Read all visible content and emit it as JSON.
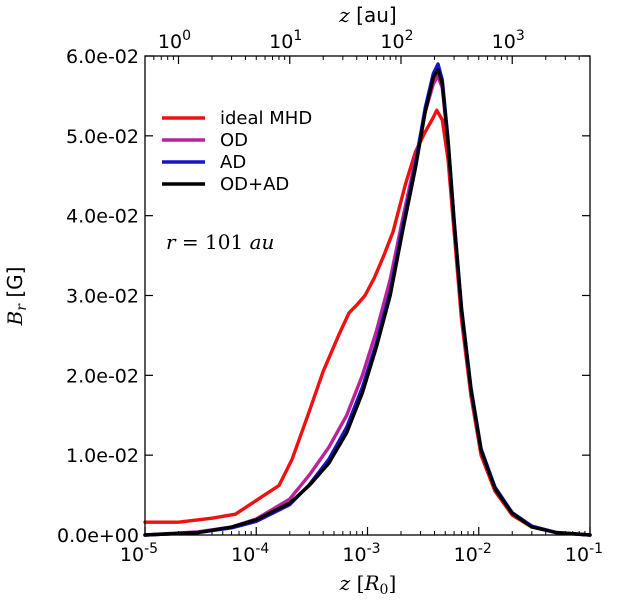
{
  "chart_data": {
    "type": "line",
    "xscale": "log",
    "xlim": [
      1e-05,
      0.1
    ],
    "ylim": [
      0,
      0.06
    ],
    "xlabel": "z [R0]",
    "ylabel": "Br [G]",
    "top_axis_label": "z [au]",
    "annotation": "r = 101 au",
    "legend_position": "upper-left",
    "grid": false,
    "y_ticks": [
      {
        "v": 0.0,
        "label": "0.0e+00"
      },
      {
        "v": 0.01,
        "label": "1.0e-02"
      },
      {
        "v": 0.02,
        "label": "2.0e-02"
      },
      {
        "v": 0.03,
        "label": "3.0e-02"
      },
      {
        "v": 0.04,
        "label": "4.0e-02"
      },
      {
        "v": 0.05,
        "label": "5.0e-02"
      },
      {
        "v": 0.06,
        "label": "6.0e-02"
      }
    ],
    "x_ticks": [
      {
        "v": 1e-05,
        "base": "10",
        "exp": "-5"
      },
      {
        "v": 0.0001,
        "base": "10",
        "exp": "-4"
      },
      {
        "v": 0.001,
        "base": "10",
        "exp": "-3"
      },
      {
        "v": 0.01,
        "base": "10",
        "exp": "-2"
      },
      {
        "v": 0.1,
        "base": "10",
        "exp": "-1"
      }
    ],
    "top_ticks": [
      {
        "v": 2e-05,
        "base": "10",
        "exp": "0"
      },
      {
        "v": 0.0002,
        "base": "10",
        "exp": "1"
      },
      {
        "v": 0.002,
        "base": "10",
        "exp": "2"
      },
      {
        "v": 0.02,
        "base": "10",
        "exp": "3"
      }
    ],
    "series": [
      {
        "name": "ideal MHD",
        "color": "#ee1111",
        "points": [
          [
            1e-05,
            0.0016
          ],
          [
            2e-05,
            0.0016
          ],
          [
            4e-05,
            0.0021
          ],
          [
            6.5e-05,
            0.0026
          ],
          [
            0.00016,
            0.0062
          ],
          [
            0.00021,
            0.0095
          ],
          [
            0.0003,
            0.0155
          ],
          [
            0.0004,
            0.0205
          ],
          [
            0.00055,
            0.025
          ],
          [
            0.00068,
            0.0278
          ],
          [
            0.0008,
            0.0288
          ],
          [
            0.00095,
            0.03
          ],
          [
            0.00115,
            0.0322
          ],
          [
            0.0014,
            0.035
          ],
          [
            0.0017,
            0.038
          ],
          [
            0.0022,
            0.044
          ],
          [
            0.0027,
            0.048
          ],
          [
            0.0033,
            0.0505
          ],
          [
            0.0038,
            0.052
          ],
          [
            0.0042,
            0.0532
          ],
          [
            0.0047,
            0.052
          ],
          [
            0.0053,
            0.047
          ],
          [
            0.006,
            0.038
          ],
          [
            0.007,
            0.027
          ],
          [
            0.0085,
            0.0175
          ],
          [
            0.0105,
            0.01
          ],
          [
            0.014,
            0.0055
          ],
          [
            0.02,
            0.0025
          ],
          [
            0.03,
            0.001
          ],
          [
            0.05,
            0.0003
          ],
          [
            0.1,
            0.0
          ]
        ]
      },
      {
        "name": "OD",
        "color": "#bb2299",
        "points": [
          [
            1e-05,
            0.0
          ],
          [
            3e-05,
            0.0004
          ],
          [
            6e-05,
            0.001
          ],
          [
            0.0001,
            0.002
          ],
          [
            0.0002,
            0.0045
          ],
          [
            0.0003,
            0.0075
          ],
          [
            0.00045,
            0.011
          ],
          [
            0.00065,
            0.015
          ],
          [
            0.0009,
            0.02
          ],
          [
            0.0012,
            0.0255
          ],
          [
            0.0016,
            0.032
          ],
          [
            0.0021,
            0.04
          ],
          [
            0.0027,
            0.047
          ],
          [
            0.0033,
            0.053
          ],
          [
            0.0039,
            0.0565
          ],
          [
            0.0043,
            0.0575
          ],
          [
            0.0047,
            0.056
          ],
          [
            0.0053,
            0.049
          ],
          [
            0.006,
            0.039
          ],
          [
            0.007,
            0.028
          ],
          [
            0.0085,
            0.018
          ],
          [
            0.0105,
            0.0105
          ],
          [
            0.014,
            0.0058
          ],
          [
            0.02,
            0.0027
          ],
          [
            0.03,
            0.0011
          ],
          [
            0.05,
            0.0003
          ],
          [
            0.1,
            0.0
          ]
        ]
      },
      {
        "name": "AD",
        "color": "#1515cc",
        "points": [
          [
            1e-05,
            0.0
          ],
          [
            3e-05,
            0.0003
          ],
          [
            6e-05,
            0.0009
          ],
          [
            0.0001,
            0.0017
          ],
          [
            0.0002,
            0.0038
          ],
          [
            0.0003,
            0.0063
          ],
          [
            0.00045,
            0.0095
          ],
          [
            0.00065,
            0.0135
          ],
          [
            0.0009,
            0.0185
          ],
          [
            0.0012,
            0.024
          ],
          [
            0.0016,
            0.0305
          ],
          [
            0.0021,
            0.039
          ],
          [
            0.0027,
            0.0465
          ],
          [
            0.0033,
            0.0535
          ],
          [
            0.0039,
            0.0578
          ],
          [
            0.0043,
            0.059
          ],
          [
            0.0047,
            0.057
          ],
          [
            0.0053,
            0.0495
          ],
          [
            0.006,
            0.0395
          ],
          [
            0.007,
            0.0285
          ],
          [
            0.0085,
            0.0185
          ],
          [
            0.0105,
            0.0108
          ],
          [
            0.014,
            0.006
          ],
          [
            0.02,
            0.0028
          ],
          [
            0.03,
            0.0011
          ],
          [
            0.05,
            0.0003
          ],
          [
            0.1,
            0.0
          ]
        ]
      },
      {
        "name": "OD+AD",
        "color": "#000000",
        "points": [
          [
            1e-05,
            0.0
          ],
          [
            3e-05,
            0.0003
          ],
          [
            6e-05,
            0.001
          ],
          [
            0.0001,
            0.0019
          ],
          [
            0.0002,
            0.004
          ],
          [
            0.0003,
            0.0062
          ],
          [
            0.00045,
            0.009
          ],
          [
            0.00065,
            0.0128
          ],
          [
            0.0009,
            0.0178
          ],
          [
            0.0012,
            0.0235
          ],
          [
            0.0016,
            0.03
          ],
          [
            0.0021,
            0.0385
          ],
          [
            0.0027,
            0.046
          ],
          [
            0.0033,
            0.053
          ],
          [
            0.0039,
            0.0573
          ],
          [
            0.0043,
            0.0583
          ],
          [
            0.0047,
            0.0565
          ],
          [
            0.0053,
            0.0492
          ],
          [
            0.006,
            0.0393
          ],
          [
            0.007,
            0.0283
          ],
          [
            0.0085,
            0.0183
          ],
          [
            0.0105,
            0.0106
          ],
          [
            0.014,
            0.0058
          ],
          [
            0.02,
            0.0027
          ],
          [
            0.03,
            0.001
          ],
          [
            0.05,
            0.0003
          ],
          [
            0.1,
            0.0
          ]
        ]
      }
    ]
  }
}
